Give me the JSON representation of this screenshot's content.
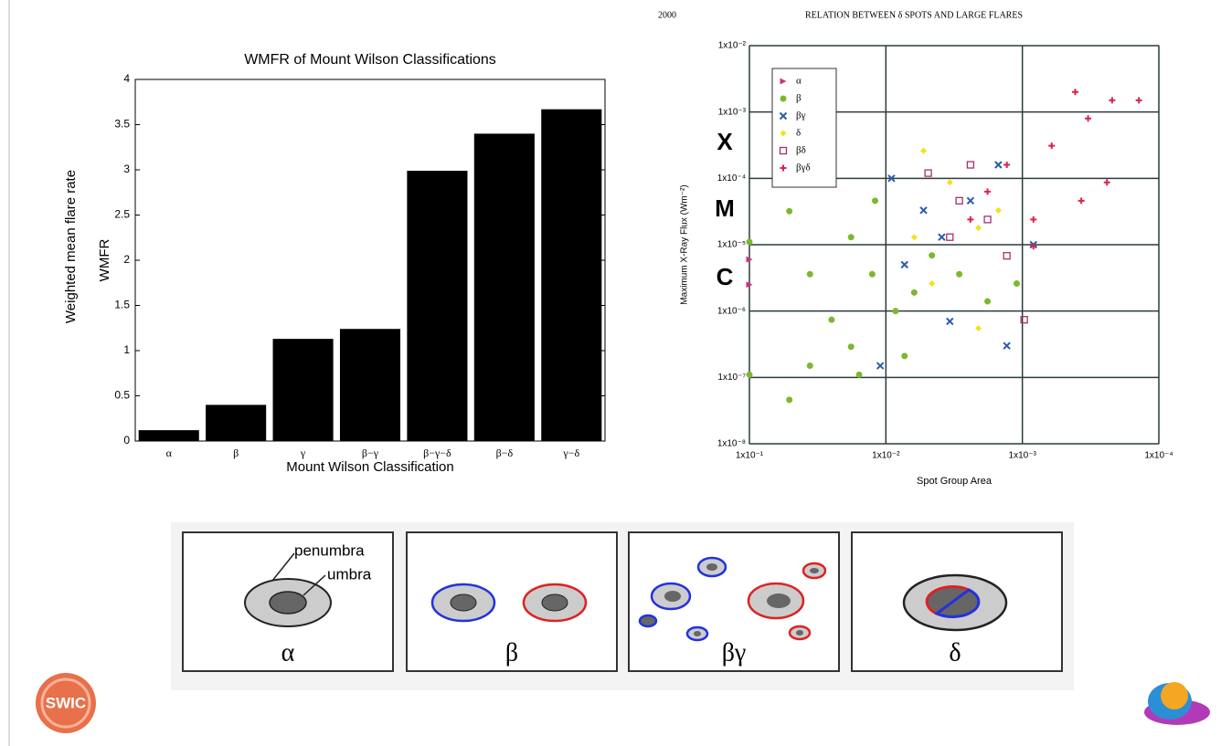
{
  "slide": {
    "side_label": "Weighted mean flare rate",
    "logo_text": "SWIC"
  },
  "header": {
    "page": "2000",
    "title": "RELATION BETWEEN δ SPOTS AND LARGE FLARES"
  },
  "flare_classes": [
    "X",
    "M",
    "C"
  ],
  "diagram": {
    "panels": [
      {
        "label": "α"
      },
      {
        "label": "β"
      },
      {
        "label": "βγ"
      },
      {
        "label": "δ"
      }
    ],
    "annotations": [
      "penumbra",
      "umbra"
    ]
  },
  "chart_data": [
    {
      "type": "bar",
      "title": "WMFR of Mount Wilson Classifications",
      "x_label": "Mount Wilson Classification",
      "y_label": "WMFR",
      "categories": [
        "α",
        "β",
        "γ",
        "β−γ",
        "β−γ−δ",
        "β−δ",
        "γ−δ"
      ],
      "values": [
        0.12,
        0.4,
        1.13,
        1.24,
        2.99,
        3.4,
        3.67
      ],
      "color": "#000000",
      "ylim": [
        0,
        4
      ],
      "yticks": [
        0,
        0.5,
        1,
        1.5,
        2,
        2.5,
        3,
        3.5,
        4
      ],
      "grid": false
    },
    {
      "type": "scatter",
      "x_label": "Spot Group Area",
      "y_label": "Maximum X-Ray Flux (Wm⁻²)",
      "log_x": true,
      "log_y": true,
      "grid": true,
      "legend": "top-left",
      "xlim": [
        0.1,
        0.0001
      ],
      "xticks": [
        {
          "value": 0.1,
          "label": "1x10⁻¹"
        },
        {
          "value": 0.01,
          "label": "1x10⁻²"
        },
        {
          "value": 0.001,
          "label": "1x10⁻³"
        },
        {
          "value": 0.0001,
          "label": "1x10⁻⁴"
        }
      ],
      "ylim": [
        1e-08,
        0.01
      ],
      "yticks": [
        {
          "value": 1e-08,
          "label": "1x10⁻⁸"
        },
        {
          "value": 1e-07,
          "label": "1x10⁻⁷"
        },
        {
          "value": 1e-06,
          "label": "1x10⁻⁶"
        },
        {
          "value": 1e-05,
          "label": "1x10⁻⁵"
        },
        {
          "value": 0.0001,
          "label": "1x10⁻⁴"
        },
        {
          "value": 0.001,
          "label": "1x10⁻³"
        },
        {
          "value": 0.01,
          "label": "1x10⁻²"
        }
      ],
      "series": [
        {
          "name": "α",
          "color": "#c2367f",
          "marker": "triangle",
          "x": [
            0.1,
            0.1
          ],
          "values": [
            6e-06,
            2.5e-06
          ]
        },
        {
          "name": "β",
          "color": "#7cb82f",
          "marker": "circle",
          "x": [
            0.1,
            0.1,
            0.051,
            0.051,
            0.036,
            0.036,
            0.025,
            0.018,
            0.018,
            0.0126,
            0.012,
            0.0085,
            0.0062,
            0.0046,
            0.0029,
            0.0018,
            0.0011,
            0.0073,
            0.0157
          ],
          "values": [
            1.1e-05,
            1.1e-07,
            3.2e-05,
            4.6e-08,
            3.6e-06,
            1.5e-07,
            7.4e-07,
            1.3e-05,
            2.9e-07,
            3.6e-06,
            4.6e-05,
            1e-06,
            1.9e-06,
            6.9e-06,
            3.6e-06,
            1.4e-06,
            2.6e-06,
            2.1e-07,
            1.1e-07
          ]
        },
        {
          "name": "βγ",
          "color": "#2a5ca8",
          "marker": "x",
          "x": [
            0.0091,
            0.0073,
            0.0039,
            0.0024,
            0.0015,
            0.0034,
            0.0013,
            0.0053,
            0.011,
            0.00083
          ],
          "values": [
            0.0001,
            5e-06,
            1.3e-05,
            4.6e-05,
            0.00016,
            7e-07,
            3e-07,
            3.3e-05,
            1.5e-07,
            1e-05
          ]
        },
        {
          "name": "δ",
          "color": "#f2e21c",
          "marker": "diamond",
          "x": [
            0.0053,
            0.0034,
            0.0021,
            0.0046,
            0.0062,
            0.0021,
            0.0015
          ],
          "values": [
            0.00026,
            8.7e-05,
            1.8e-05,
            2.6e-06,
            1.3e-05,
            5.5e-07,
            3.3e-05
          ]
        },
        {
          "name": "βδ",
          "color": "#a3306e",
          "marker": "square",
          "x": [
            0.0049,
            0.0029,
            0.0018,
            0.00097,
            0.0013,
            0.0024,
            0.0034
          ],
          "values": [
            0.00012,
            4.6e-05,
            2.4e-05,
            7.4e-07,
            6.8e-06,
            0.00016,
            1.3e-05
          ]
        },
        {
          "name": "βγδ",
          "color": "#d8234d",
          "marker": "plus",
          "x": [
            0.00041,
            0.00022,
            0.00033,
            0.00061,
            0.00024,
            0.0013,
            0.0018,
            0.00083,
            0.00083,
            0.0024,
            0.00014,
            0.00037
          ],
          "values": [
            0.002,
            0.0015,
            0.0008,
            0.00031,
            8.7e-05,
            0.00016,
            6.3e-05,
            2.4e-05,
            9.5e-06,
            2.4e-05,
            0.0015,
            4.6e-05
          ]
        }
      ]
    }
  ]
}
